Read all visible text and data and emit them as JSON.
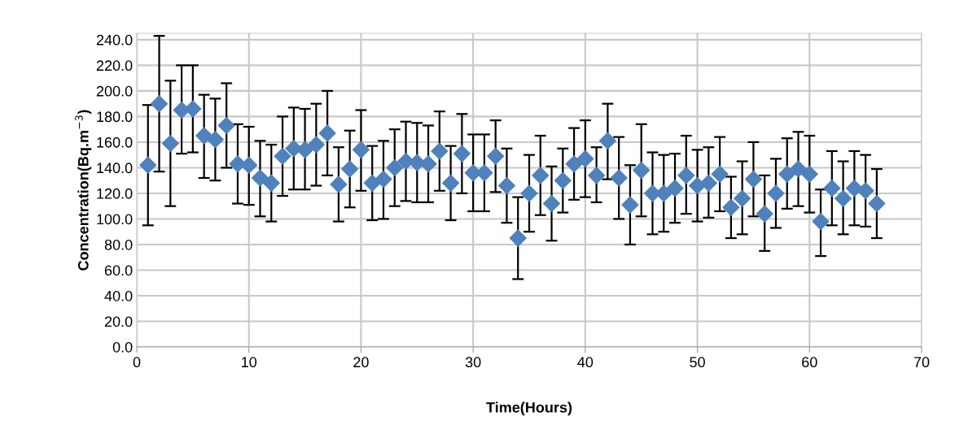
{
  "chart_data": {
    "type": "scatter",
    "xlabel": "Time(Hours)",
    "ylabel": "Concentration(Bq.m$^{−3}$)",
    "xlim": [
      0,
      70
    ],
    "xticks": [
      0,
      10,
      20,
      30,
      40,
      50,
      60,
      70
    ],
    "ylim": [
      0,
      245
    ],
    "yticks": [
      {
        "value": 0,
        "label": "0.0"
      },
      {
        "value": 20,
        "label": "20.0"
      },
      {
        "value": 40,
        "label": "40.0"
      },
      {
        "value": 60,
        "label": "60.0"
      },
      {
        "value": 80,
        "label": "80.0"
      },
      {
        "value": 100,
        "label": "100.0"
      },
      {
        "value": 120,
        "label": "120.0"
      },
      {
        "value": 140,
        "label": "140.0"
      },
      {
        "value": 160,
        "label": "160.0"
      },
      {
        "value": 180,
        "label": "180.0"
      },
      {
        "value": 200,
        "label": "200.0"
      },
      {
        "value": 220,
        "label": "220.0"
      },
      {
        "value": 240,
        "label": "240.0"
      }
    ],
    "grid": true,
    "marker": "diamond",
    "legend": false,
    "x": [
      1,
      2,
      3,
      4,
      5,
      6,
      7,
      8,
      9,
      10,
      11,
      12,
      13,
      14,
      15,
      16,
      17,
      18,
      19,
      20,
      21,
      22,
      23,
      24,
      25,
      26,
      27,
      28,
      29,
      30,
      31,
      32,
      33,
      34,
      35,
      36,
      37,
      38,
      39,
      40,
      41,
      42,
      43,
      44,
      45,
      46,
      47,
      48,
      49,
      50,
      51,
      52,
      53,
      54,
      55,
      56,
      57,
      58,
      59,
      60,
      61,
      62,
      63,
      64,
      65,
      66
    ],
    "series": [
      {
        "color": "#4f81bd",
        "values": [
          142,
          190,
          159,
          185,
          186,
          165,
          162,
          173,
          143,
          142,
          132,
          128,
          149,
          155,
          154,
          158,
          167,
          127,
          139,
          154,
          128,
          131,
          140,
          145,
          144,
          143,
          153,
          128,
          151,
          136,
          136,
          149,
          126,
          85,
          120,
          134,
          112,
          130,
          143,
          147,
          134,
          161,
          132,
          111,
          138,
          120,
          120,
          124,
          134,
          126,
          128,
          135,
          109,
          116,
          131,
          104,
          120,
          135,
          139,
          135,
          98,
          124,
          116,
          124,
          122,
          112
        ],
        "errors": [
          [
            95,
            189
          ],
          [
            137,
            243
          ],
          [
            110,
            208
          ],
          [
            151,
            220
          ],
          [
            152,
            220
          ],
          [
            132,
            197
          ],
          [
            130,
            194
          ],
          [
            140,
            206
          ],
          [
            112,
            174
          ],
          [
            111,
            172
          ],
          [
            102,
            161
          ],
          [
            98,
            158
          ],
          [
            118,
            180
          ],
          [
            123,
            187
          ],
          [
            123,
            186
          ],
          [
            126,
            190
          ],
          [
            134,
            200
          ],
          [
            98,
            156
          ],
          [
            109,
            169
          ],
          [
            122,
            185
          ],
          [
            99,
            157
          ],
          [
            100,
            161
          ],
          [
            110,
            170
          ],
          [
            114,
            176
          ],
          [
            113,
            175
          ],
          [
            113,
            173
          ],
          [
            122,
            184
          ],
          [
            99,
            157
          ],
          [
            120,
            182
          ],
          [
            106,
            166
          ],
          [
            106,
            166
          ],
          [
            121,
            177
          ],
          [
            97,
            155
          ],
          [
            53,
            117
          ],
          [
            90,
            150
          ],
          [
            103,
            165
          ],
          [
            83,
            141
          ],
          [
            105,
            155
          ],
          [
            115,
            171
          ],
          [
            117,
            177
          ],
          [
            113,
            156
          ],
          [
            131,
            190
          ],
          [
            100,
            164
          ],
          [
            80,
            142
          ],
          [
            102,
            174
          ],
          [
            88,
            152
          ],
          [
            90,
            150
          ],
          [
            97,
            151
          ],
          [
            104,
            165
          ],
          [
            98,
            154
          ],
          [
            101,
            156
          ],
          [
            106,
            164
          ],
          [
            85,
            133
          ],
          [
            88,
            145
          ],
          [
            102,
            160
          ],
          [
            75,
            134
          ],
          [
            93,
            147
          ],
          [
            108,
            163
          ],
          [
            110,
            168
          ],
          [
            105,
            165
          ],
          [
            71,
            123
          ],
          [
            95,
            153
          ],
          [
            88,
            145
          ],
          [
            95,
            153
          ],
          [
            94,
            150
          ],
          [
            85,
            139
          ]
        ]
      }
    ]
  }
}
